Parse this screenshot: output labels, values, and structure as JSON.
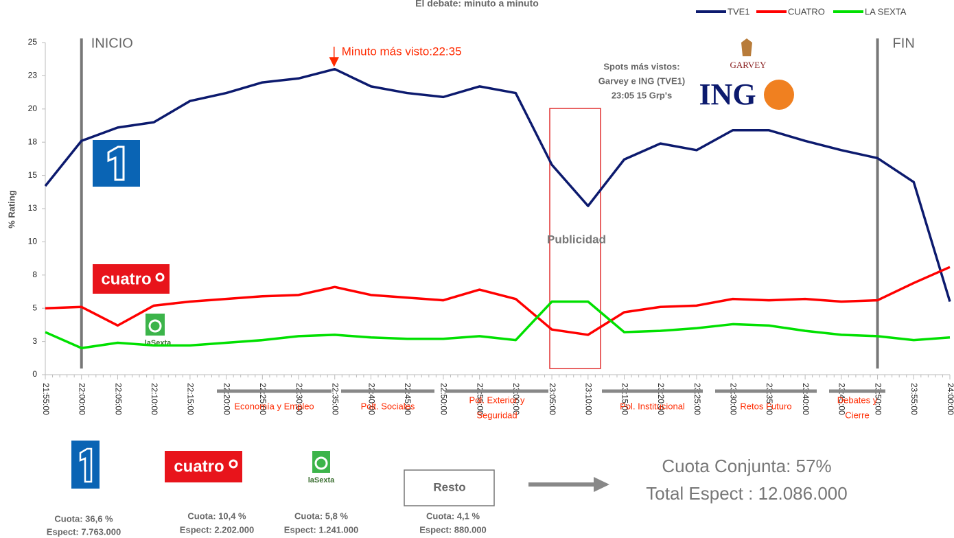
{
  "chart_data": {
    "type": "line",
    "title": "El debate: minuto a minuto",
    "y_label": "% Rating",
    "categories": [
      "21:55:00",
      "22:00:00",
      "22:05:00",
      "22:10:00",
      "22:15:00",
      "22:20:00",
      "22:25:00",
      "22:30:00",
      "22:35:00",
      "22:40:00",
      "22:45:00",
      "22:50:00",
      "22:55:00",
      "23:00:00",
      "23:05:00",
      "23:10:00",
      "23:15:00",
      "23:20:00",
      "23:25:00",
      "23:30:00",
      "23:35:00",
      "23:40:00",
      "23:45:00",
      "23:50:00",
      "23:55:00",
      "24:00:00"
    ],
    "series": [
      {
        "name": "TVE1",
        "color": "#0c1a6e",
        "values": [
          14.2,
          17.6,
          18.6,
          19.0,
          20.6,
          21.2,
          22.0,
          22.3,
          23.0,
          21.7,
          21.2,
          20.9,
          21.7,
          21.2,
          15.8,
          12.7,
          16.2,
          17.4,
          16.9,
          18.4,
          18.4,
          17.6,
          16.9,
          16.3,
          14.5,
          5.5
        ]
      },
      {
        "name": "CUATRO",
        "color": "#ff0000",
        "values": [
          5.0,
          5.1,
          3.7,
          5.2,
          5.5,
          5.7,
          5.9,
          6.0,
          6.6,
          6.0,
          5.8,
          5.6,
          6.4,
          5.7,
          3.4,
          3.0,
          4.7,
          5.1,
          5.2,
          5.7,
          5.6,
          5.7,
          5.5,
          5.6,
          6.9,
          8.1
        ]
      },
      {
        "name": "LA SEXTA",
        "color": "#00e000",
        "values": [
          3.2,
          2.0,
          2.4,
          2.2,
          2.2,
          2.4,
          2.6,
          2.9,
          3.0,
          2.8,
          2.7,
          2.7,
          2.9,
          2.6,
          5.5,
          5.5,
          3.2,
          3.3,
          3.5,
          3.8,
          3.7,
          3.3,
          3.0,
          2.9,
          2.6,
          2.8
        ]
      }
    ],
    "ylim": [
      0,
      25
    ],
    "yticks": [
      0,
      {
        "value": 2.5,
        "label": "3"
      },
      5,
      {
        "value": 7.5,
        "label": "8"
      },
      10,
      {
        "value": 12.5,
        "label": "13"
      },
      15,
      {
        "value": 17.5,
        "label": "18"
      },
      20,
      {
        "value": 22.5,
        "label": "23"
      },
      25
    ],
    "legend": "top-right",
    "markers": [
      {
        "label": "INICIO",
        "x": "22:00:00"
      },
      {
        "label": "FIN",
        "x": "23:50:00"
      }
    ],
    "peak_note": "Minuto más visto:22:35",
    "spots": [
      "Spots más vistos:",
      "Garvey e ING (TVE1)",
      "23:05 15 Grp's"
    ],
    "ad_label": "Publicidad",
    "brands": [
      "GARVEY",
      "ING"
    ],
    "topics": [
      [
        "Economía y Empleo"
      ],
      [
        "Polt. Sociales"
      ],
      [
        "Pol. Exterior y",
        "Seguridad"
      ],
      [
        "Pol. Institucional"
      ],
      [
        "Retos Futuro"
      ],
      [
        "Debates y",
        "Cierre"
      ]
    ]
  },
  "logos": {
    "cuatro": "cuatro",
    "lasexta": "laSexta",
    "resto": "Resto"
  },
  "shares": [
    {
      "cuota": "Cuota: 36,6 %",
      "espect": "Espect: 7.763.000"
    },
    {
      "cuota": "Cuota: 10,4 %",
      "espect": "Espect: 2.202.000"
    },
    {
      "cuota": "Cuota: 5,8 %",
      "espect": "Espect: 1.241.000"
    },
    {
      "cuota": "Cuota: 4,1 %",
      "espect": "Espect: 880.000"
    }
  ],
  "totals": [
    "Cuota Conjunta: 57%",
    "Total Espect : 12.086.000"
  ]
}
